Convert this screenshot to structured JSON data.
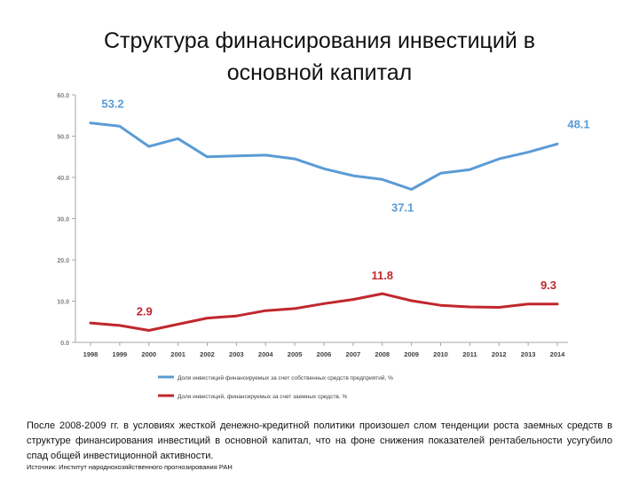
{
  "title_line1": "Структура финансирования инвестиций в",
  "title_line2": "основной капитал",
  "caption": "После 2008-2009 гг. в условиях жесткой денежно-кредитной политики произошел слом тенденции роста заемных средств в структуре финансирования инвестиций в основной капитал, что на фоне снижения показателей рентабельности усугубило спад общей инвестиционной активности.",
  "source": "Источник: Институт народнохозяйственного прогнозирования РАН",
  "chart_data": {
    "type": "line",
    "title": "",
    "xlabel": "",
    "ylabel": "",
    "ylim": [
      0,
      60
    ],
    "y_ticks": [
      "0.0",
      "10.0",
      "20.0",
      "30.0",
      "40.0",
      "50.0",
      "60.0"
    ],
    "grid": false,
    "legend_position": "bottom",
    "categories": [
      "1998",
      "1999",
      "2000",
      "2001",
      "2002",
      "2003",
      "2004",
      "2005",
      "2006",
      "2007",
      "2008",
      "2009",
      "2010",
      "2011",
      "2012",
      "2013",
      "2014"
    ],
    "series": [
      {
        "name": "Доля инвестиций финансируемых за счет собственных средств предприятий, %",
        "color": "#5b9bd5",
        "values": [
          53.2,
          52.4,
          47.5,
          49.4,
          45.0,
          45.2,
          45.4,
          44.5,
          42.1,
          40.4,
          39.5,
          37.1,
          41.0,
          41.9,
          44.5,
          46.1,
          48.1
        ]
      },
      {
        "name": "Доля инвестиций, финансируемых за счет заемных средств, %",
        "color": "#c0272d",
        "values": [
          4.7,
          4.1,
          2.9,
          4.4,
          5.9,
          6.4,
          7.7,
          8.2,
          9.4,
          10.4,
          11.8,
          10.1,
          9.0,
          8.6,
          8.5,
          9.3,
          9.3
        ]
      }
    ],
    "annotations": [
      {
        "series": 0,
        "index": 0,
        "text": "53.2",
        "color": "#5b9bd5"
      },
      {
        "series": 0,
        "index": 16,
        "text": "48.1",
        "color": "#5b9bd5"
      },
      {
        "series": 0,
        "index": 11,
        "text": "37.1",
        "color": "#5b9bd5"
      },
      {
        "series": 1,
        "index": 2,
        "text": "2.9",
        "color": "#c0272d"
      },
      {
        "series": 1,
        "index": 10,
        "text": "11.8",
        "color": "#c0272d"
      },
      {
        "series": 1,
        "index": 16,
        "text": "9.3",
        "color": "#c0272d"
      }
    ]
  }
}
